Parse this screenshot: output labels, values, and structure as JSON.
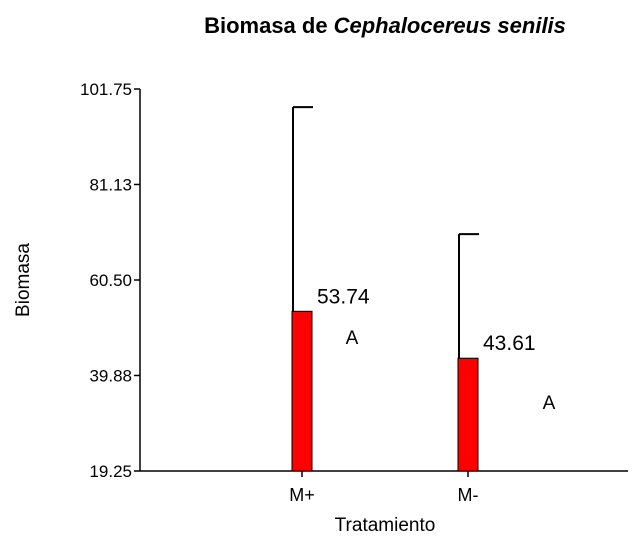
{
  "chart_data": {
    "type": "bar",
    "title": {
      "plain": "Biomasa de",
      "italic": "Cephalocereus senilis"
    },
    "x_label": "Tratamiento",
    "y_label": "Biomasa",
    "categories": [
      "M+",
      "M-"
    ],
    "values": [
      53.74,
      43.61
    ],
    "errors": [
      44.1,
      26.8
    ],
    "annotations": [
      "A",
      "A"
    ],
    "color": "#ff0000",
    "ylim": [
      19.25,
      101.75
    ],
    "yticks": [
      19.25,
      39.88,
      {
        "value": 60.5,
        "label": "60.50"
      },
      81.13,
      101.75
    ]
  }
}
